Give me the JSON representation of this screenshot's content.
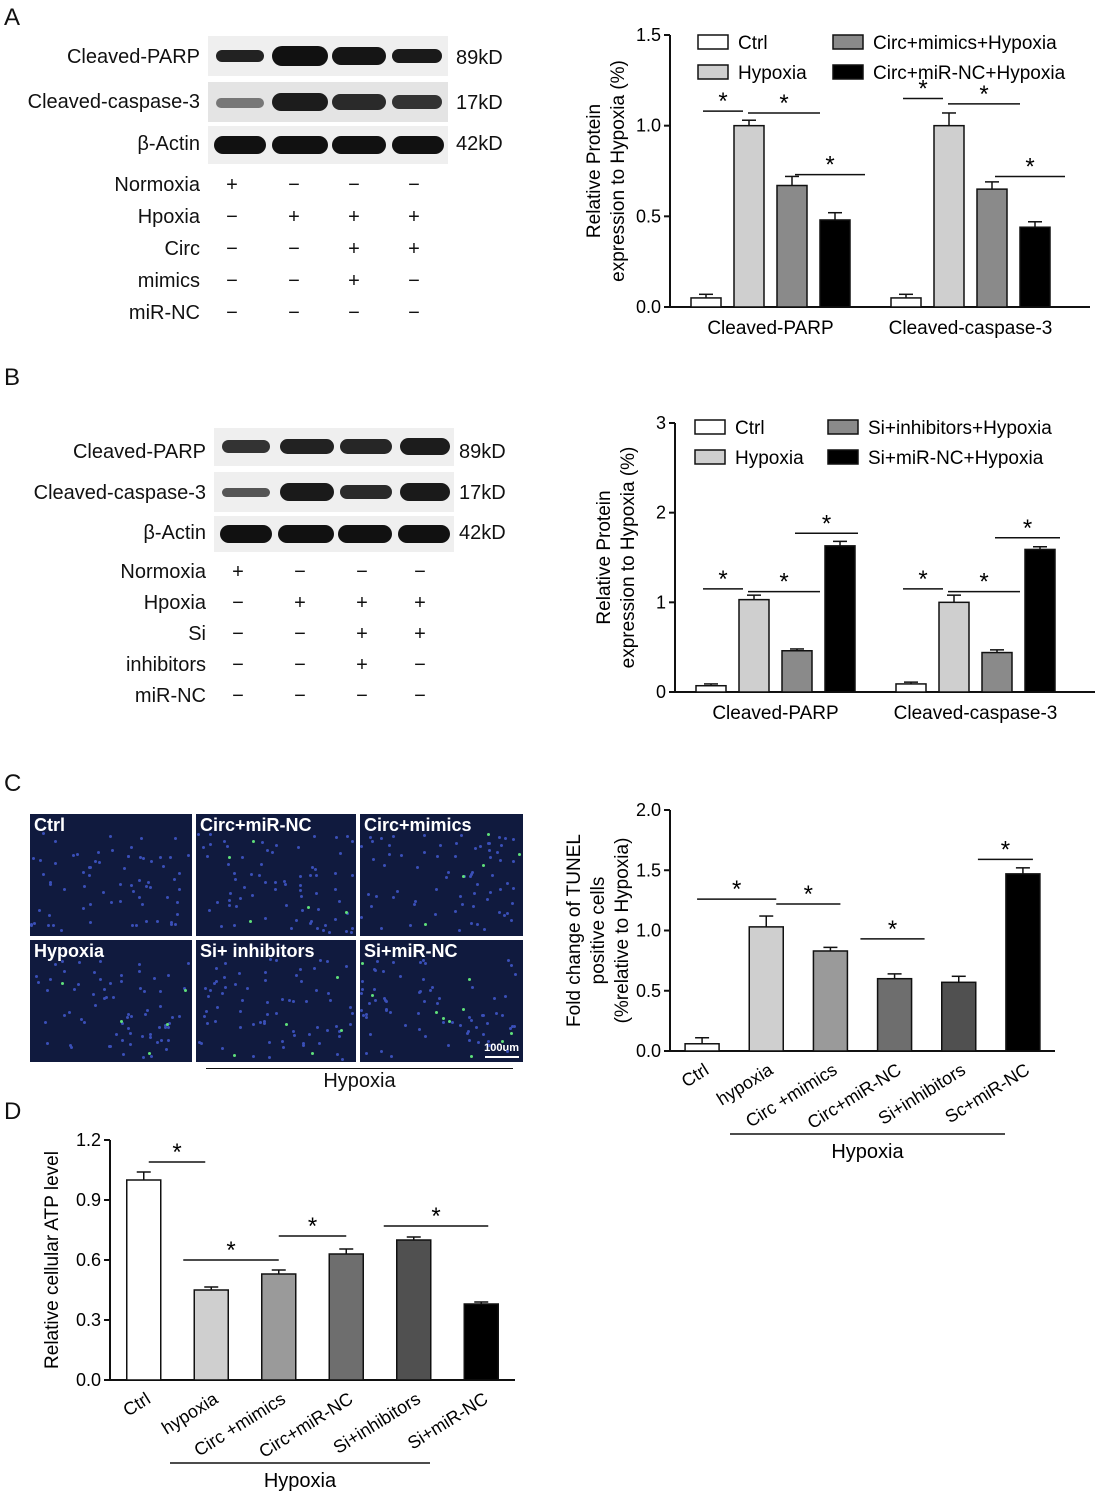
{
  "panel_labels": {
    "a": "A",
    "b": "B",
    "c": "C",
    "d": "D"
  },
  "blot_a": {
    "rows": [
      {
        "name": "Cleaved-PARP",
        "kd": "89kD"
      },
      {
        "name": "Cleaved-caspase-3",
        "kd": "17kD"
      },
      {
        "name": "β-Actin",
        "kd": "42kD"
      }
    ],
    "conditions": [
      {
        "name": "Normoxia",
        "signs": [
          "+",
          "−",
          "−",
          "−"
        ]
      },
      {
        "name": "Hpoxia",
        "signs": [
          "−",
          "+",
          "+",
          "+"
        ]
      },
      {
        "name": "Circ",
        "signs": [
          "−",
          "−",
          "+",
          "+"
        ]
      },
      {
        "name": "mimics",
        "signs": [
          "−",
          "−",
          "+",
          "−"
        ]
      },
      {
        "name": "miR-NC",
        "signs": [
          "−",
          "−",
          "−",
          "−"
        ]
      }
    ]
  },
  "blot_b": {
    "rows": [
      {
        "name": "Cleaved-PARP",
        "kd": "89kD"
      },
      {
        "name": "Cleaved-caspase-3",
        "kd": "17kD"
      },
      {
        "name": "β-Actin",
        "kd": "42kD"
      }
    ],
    "conditions": [
      {
        "name": "Normoxia",
        "signs": [
          "+",
          "−",
          "−",
          "−"
        ]
      },
      {
        "name": "Hpoxia",
        "signs": [
          "−",
          "+",
          "+",
          "+"
        ]
      },
      {
        "name": "Si",
        "signs": [
          "−",
          "−",
          "+",
          "+"
        ]
      },
      {
        "name": "inhibitors",
        "signs": [
          "−",
          "−",
          "+",
          "−"
        ]
      },
      {
        "name": "miR-NC",
        "signs": [
          "−",
          "−",
          "−",
          "−"
        ]
      }
    ]
  },
  "micrographs": {
    "labels": [
      "Ctrl",
      "Circ+miR-NC",
      "Circ+mimics",
      "Hypoxia",
      "Si+ inhibitors",
      "Si+miR-NC"
    ],
    "scale_bar": "100um",
    "group_label": "Hypoxia"
  },
  "colors": {
    "ctrl": "#ffffff",
    "hypoxia": "#cfcfcf",
    "treat1": "#8a8a8a",
    "treat2": "#000000"
  },
  "chart_data": [
    {
      "type": "bar",
      "categories": [
        "Cleaved-PARP",
        "Cleaved-caspase-3"
      ],
      "series": [
        {
          "name": "Ctrl",
          "values": [
            0.05,
            0.05
          ],
          "errors": [
            0.02,
            0.02
          ],
          "color": "#ffffff"
        },
        {
          "name": "Hypoxia",
          "values": [
            1.0,
            1.0
          ],
          "errors": [
            0.03,
            0.07
          ],
          "color": "#cfcfcf"
        },
        {
          "name": "Circ+mimics+Hypoxia",
          "values": [
            0.67,
            0.65
          ],
          "errors": [
            0.05,
            0.04
          ],
          "color": "#8a8a8a"
        },
        {
          "name": "Circ+miR-NC+Hypoxia",
          "values": [
            0.48,
            0.44
          ],
          "errors": [
            0.04,
            0.03
          ],
          "color": "#000000"
        }
      ],
      "ylabel": [
        "Relative Protein",
        "expression to Hypoxia (%)"
      ],
      "ylim": [
        0,
        1.5
      ],
      "yticks": [
        "0.0",
        "0.5",
        "1.0",
        "1.5"
      ],
      "significance": "*",
      "legend": "top"
    },
    {
      "type": "bar",
      "categories": [
        "Cleaved-PARP",
        "Cleaved-caspase-3"
      ],
      "series": [
        {
          "name": "Ctrl",
          "values": [
            0.07,
            0.09
          ],
          "errors": [
            0.02,
            0.02
          ],
          "color": "#ffffff"
        },
        {
          "name": "Hypoxia",
          "values": [
            1.03,
            1.0
          ],
          "errors": [
            0.05,
            0.08
          ],
          "color": "#cfcfcf"
        },
        {
          "name": "Si+inhibitors+Hypoxia",
          "values": [
            0.46,
            0.44
          ],
          "errors": [
            0.02,
            0.03
          ],
          "color": "#8a8a8a"
        },
        {
          "name": "Si+miR-NC+Hypoxia",
          "values": [
            1.63,
            1.59
          ],
          "errors": [
            0.05,
            0.03
          ],
          "color": "#000000"
        }
      ],
      "ylabel": [
        "Relative Protein",
        "expression to Hypoxia (%)"
      ],
      "ylim": [
        0,
        3
      ],
      "yticks": [
        "0",
        "1",
        "2",
        "3"
      ],
      "significance": "*",
      "legend": "top"
    },
    {
      "type": "bar",
      "categories": [
        "Ctrl",
        "hypoxia",
        "Circ +mimics",
        "Circ+miR-NC",
        "Si+inhibitors",
        "Sc+miR-NC"
      ],
      "values": [
        0.06,
        1.03,
        0.83,
        0.6,
        0.57,
        1.47
      ],
      "errors": [
        0.05,
        0.09,
        0.03,
        0.04,
        0.05,
        0.05
      ],
      "colors": [
        "#ffffff",
        "#cfcfcf",
        "#9a9a9a",
        "#6e6e6e",
        "#505050",
        "#000000"
      ],
      "ylabel": [
        "Fold change of TUNEL",
        "positive cells",
        "(%relative to Hypoxia)"
      ],
      "ylim": [
        0,
        2.0
      ],
      "yticks": [
        "0.0",
        "0.5",
        "1.0",
        "1.5",
        "2.0"
      ],
      "group_label": "Hypoxia",
      "significance": "*"
    },
    {
      "type": "bar",
      "categories": [
        "Ctrl",
        "hypoxia",
        "Circ +mimics",
        "Circ+miR-NC",
        "Si+inhibitors",
        "Si+miR-NC"
      ],
      "values": [
        1.0,
        0.45,
        0.53,
        0.63,
        0.7,
        0.38
      ],
      "errors": [
        0.04,
        0.015,
        0.02,
        0.025,
        0.015,
        0.01
      ],
      "colors": [
        "#ffffff",
        "#cfcfcf",
        "#9a9a9a",
        "#6e6e6e",
        "#505050",
        "#000000"
      ],
      "ylabel": [
        "Relative cellular ATP level"
      ],
      "ylim": [
        0,
        1.2
      ],
      "yticks": [
        "0.0",
        "0.3",
        "0.6",
        "0.9",
        "1.2"
      ],
      "group_label": "Hypoxia",
      "significance": "*"
    }
  ]
}
